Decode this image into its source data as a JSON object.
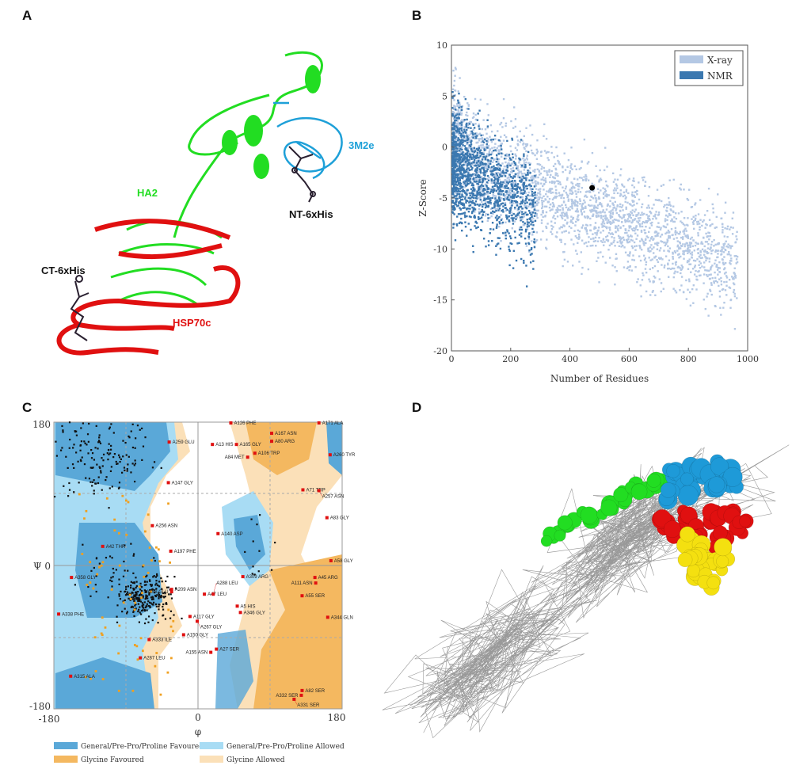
{
  "panels": {
    "a": "A",
    "b": "B",
    "c": "C",
    "d": "D"
  },
  "panel_a": {
    "labels": {
      "ha2": "HA2",
      "nt": "NT-6xHis",
      "m2e": "3M2e",
      "ct": "CT-6xHis",
      "hsp": "HSP70c"
    },
    "colors": {
      "ha2": "#22dd22",
      "m2e": "#1ea0d8",
      "hsp": "#e01010",
      "tag": "#2a2030"
    }
  },
  "chart_data": [
    {
      "type": "scatter",
      "panel": "B",
      "xlabel": "Number of Residues",
      "ylabel": "Z-Score",
      "xlim": [
        0,
        1000
      ],
      "ylim": [
        -20,
        10
      ],
      "xticks": [
        "0",
        "200",
        "400",
        "600",
        "800",
        "1000"
      ],
      "yticks": [
        "10",
        "5",
        "0",
        "-5",
        "-10",
        "-15",
        "-20"
      ],
      "legend_position": "top-right",
      "series": [
        {
          "name": "X-ray",
          "color": "#b4c8e4"
        },
        {
          "name": "NMR",
          "color": "#3b78b0"
        }
      ],
      "highlight_point": {
        "x": 475,
        "y": -4,
        "color": "#000000"
      }
    },
    {
      "type": "scatter",
      "panel": "C",
      "xlabel": "φ",
      "ylabel": "Ψ",
      "xlim": [
        -180,
        180
      ],
      "ylim": [
        -180,
        180
      ],
      "xticks": [
        "-180",
        "0",
        "180"
      ],
      "yticks": [
        "180",
        "0",
        "-180"
      ],
      "ytick_mid_label": "Ψ 0",
      "legend": [
        {
          "label": "General/Pre-Pro/Proline Favoured",
          "color": "#5aa8d8"
        },
        {
          "label": "General/Pre-Pro/Proline Allowed",
          "color": "#a8dcf4"
        },
        {
          "label": "Glycine Favoured",
          "color": "#f4b860"
        },
        {
          "label": "Glycine Allowed",
          "color": "#fbe0b8"
        }
      ],
      "outliers": [
        {
          "label": "A126 PHE",
          "phi": 41,
          "psi": 179
        },
        {
          "label": "A171 ALA",
          "phi": 151,
          "psi": 179
        },
        {
          "label": "A259 GLU",
          "phi": -36,
          "psi": 155
        },
        {
          "label": "A13 HIS",
          "phi": 18,
          "psi": 152
        },
        {
          "label": "A165 GLY",
          "phi": 48,
          "psi": 152
        },
        {
          "label": "A167 ASN",
          "phi": 92,
          "psi": 166
        },
        {
          "label": "A80 ARG",
          "phi": 92,
          "psi": 156
        },
        {
          "label": "A106 TRP",
          "phi": 71,
          "psi": 141
        },
        {
          "label": "A84 MET",
          "phi": 62,
          "psi": 136
        },
        {
          "label": "A260 TYR",
          "phi": 165,
          "psi": 139
        },
        {
          "label": "A147 GLY",
          "phi": -37,
          "psi": 104
        },
        {
          "label": "A71 TRP",
          "phi": 131,
          "psi": 95
        },
        {
          "label": "A257 ASN",
          "phi": 151,
          "psi": 94
        },
        {
          "label": "A83 GLY",
          "phi": 161,
          "psi": 60
        },
        {
          "label": "A256 ASN",
          "phi": -57,
          "psi": 50
        },
        {
          "label": "A140 ASP",
          "phi": 25,
          "psi": 40
        },
        {
          "label": "A42 THR",
          "phi": -119,
          "psi": 24
        },
        {
          "label": "A197 PHE",
          "phi": -34,
          "psi": 18
        },
        {
          "label": "A58 GLY",
          "phi": 166,
          "psi": 6
        },
        {
          "label": "A358 GLY",
          "phi": -158,
          "psi": -15
        },
        {
          "label": "A309 ARG",
          "phi": 56,
          "psi": -14
        },
        {
          "label": "A45 ARG",
          "phi": 146,
          "psi": -15
        },
        {
          "label": "A111 ASN",
          "phi": 147,
          "psi": -22
        },
        {
          "label": "A209 ASN",
          "phi": -33,
          "psi": -30
        },
        {
          "label": "A158 GLU",
          "phi": -33,
          "psi": -33
        },
        {
          "label": "A47 LEU",
          "phi": 8,
          "psi": -36
        },
        {
          "label": "A288 LEU",
          "phi": 19,
          "psi": -36
        },
        {
          "label": "A55 SER",
          "phi": 130,
          "psi": -38
        },
        {
          "label": "A5 HIS",
          "phi": 49,
          "psi": -51
        },
        {
          "label": "A346 GLY",
          "phi": 53,
          "psi": -59
        },
        {
          "label": "A338 PHE",
          "phi": -174,
          "psi": -61
        },
        {
          "label": "A117 GLY",
          "phi": -10,
          "psi": -64
        },
        {
          "label": "A344 GLN",
          "phi": 162,
          "psi": -65
        },
        {
          "label": "A267 GLY",
          "phi": -1,
          "psi": -70
        },
        {
          "label": "A150 GLY",
          "phi": -18,
          "psi": -87
        },
        {
          "label": "A333 ILE",
          "phi": -61,
          "psi": -93
        },
        {
          "label": "A27 SER",
          "phi": 23,
          "psi": -105
        },
        {
          "label": "A155 ASN",
          "phi": 16,
          "psi": -109
        },
        {
          "label": "A287 LEU",
          "phi": -72,
          "psi": -116
        },
        {
          "label": "A315 ALA",
          "phi": -159,
          "psi": -139
        },
        {
          "label": "A82 SER",
          "phi": 130,
          "psi": -157
        },
        {
          "label": "A332 SER",
          "phi": 129,
          "psi": -163
        },
        {
          "label": "A331 SER",
          "phi": 120,
          "psi": -168
        }
      ]
    }
  ],
  "panel_d": {
    "colors": {
      "green": "#22dd22",
      "blue": "#1e9ad8",
      "red": "#e01010",
      "yellow": "#f4e010",
      "wire": "#888888"
    }
  }
}
